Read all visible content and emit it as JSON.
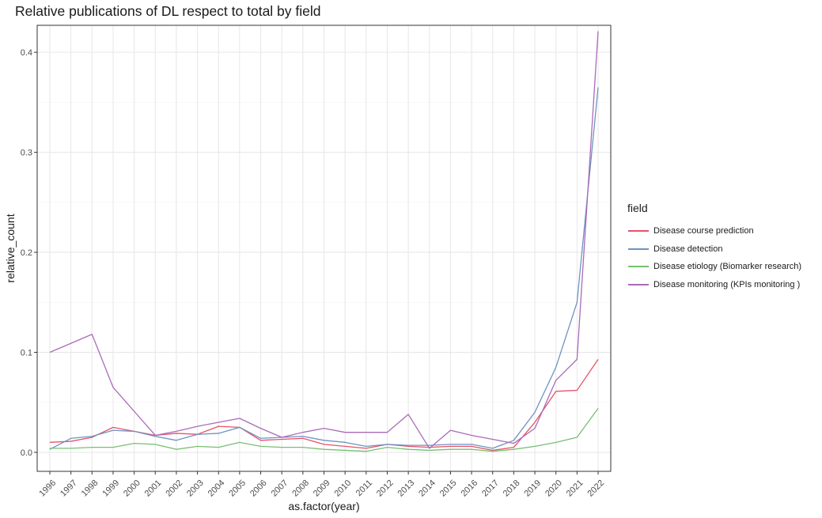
{
  "chart_data": {
    "type": "line",
    "title": "Relative publications of DL respect to total by field",
    "xlabel": "as.factor(year)",
    "ylabel": "relative_count",
    "categories": [
      "1996",
      "1997",
      "1998",
      "1999",
      "2000",
      "2001",
      "2002",
      "2003",
      "2004",
      "2005",
      "2006",
      "2007",
      "2008",
      "2009",
      "2010",
      "2011",
      "2012",
      "2013",
      "2014",
      "2015",
      "2016",
      "2017",
      "2018",
      "2019",
      "2020",
      "2021",
      "2022"
    ],
    "ylim": [
      -0.019,
      0.427
    ],
    "yticks": [
      0.0,
      0.1,
      0.2,
      0.3,
      0.4
    ],
    "ytick_labels": [
      "0.0",
      "0.1",
      "0.2",
      "0.3",
      "0.4"
    ],
    "grid": true,
    "legend": {
      "title": "field",
      "position": "right"
    },
    "series": [
      {
        "name": "Disease course prediction",
        "color": "#E4536A",
        "values": [
          0.01,
          0.011,
          0.015,
          0.025,
          0.021,
          0.017,
          0.019,
          0.018,
          0.026,
          0.025,
          0.012,
          0.013,
          0.014,
          0.008,
          0.006,
          0.004,
          0.008,
          0.006,
          0.005,
          0.006,
          0.006,
          0.002,
          0.005,
          0.03,
          0.061,
          0.062,
          0.093
        ]
      },
      {
        "name": "Disease detection",
        "color": "#6E93C0",
        "values": [
          0.003,
          0.014,
          0.016,
          0.022,
          0.021,
          0.016,
          0.012,
          0.018,
          0.019,
          0.025,
          0.014,
          0.015,
          0.016,
          0.012,
          0.01,
          0.006,
          0.008,
          0.007,
          0.007,
          0.008,
          0.008,
          0.004,
          0.012,
          0.04,
          0.085,
          0.15,
          0.365
        ]
      },
      {
        "name": "Disease etiology (Biomarker research)",
        "color": "#78BF72",
        "values": [
          0.004,
          0.004,
          0.005,
          0.005,
          0.009,
          0.008,
          0.003,
          0.006,
          0.005,
          0.01,
          0.006,
          0.005,
          0.005,
          0.003,
          0.002,
          0.001,
          0.005,
          0.003,
          0.002,
          0.003,
          0.003,
          0.001,
          0.003,
          0.006,
          0.01,
          0.015,
          0.044
        ]
      },
      {
        "name": "Disease monitoring (KPIs monitoring )",
        "color": "#AA6BB9",
        "values": [
          0.1,
          0.109,
          0.118,
          0.065,
          0.041,
          0.017,
          0.021,
          0.026,
          0.03,
          0.034,
          0.024,
          0.015,
          0.02,
          0.024,
          0.02,
          0.02,
          0.02,
          0.038,
          0.004,
          0.022,
          0.017,
          0.013,
          0.009,
          0.024,
          0.072,
          0.093,
          0.421
        ]
      }
    ]
  }
}
